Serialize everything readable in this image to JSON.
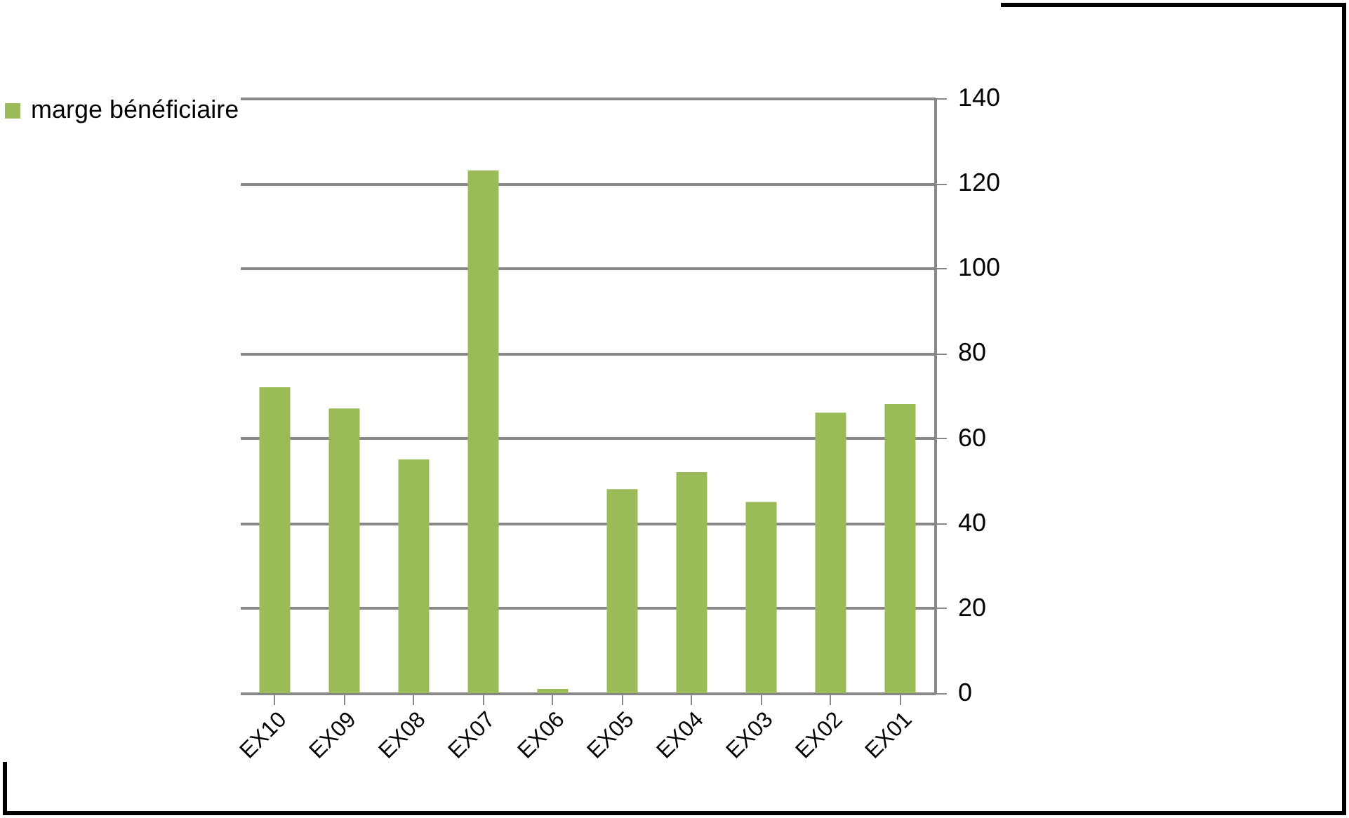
{
  "chart_data": {
    "type": "bar",
    "categories": [
      "EX10",
      "EX09",
      "EX08",
      "EX07",
      "EX06",
      "EX05",
      "EX04",
      "EX03",
      "EX02",
      "EX01"
    ],
    "series": [
      {
        "name": "marge bénéficiaire",
        "color": "#9bbb59",
        "values": [
          72,
          67,
          55,
          123,
          1,
          48,
          52,
          45,
          66,
          68
        ]
      }
    ],
    "ylim": [
      0,
      140
    ],
    "yticks": [
      0,
      20,
      40,
      60,
      80,
      100,
      120,
      140
    ],
    "grid": "y",
    "legend": "left"
  }
}
